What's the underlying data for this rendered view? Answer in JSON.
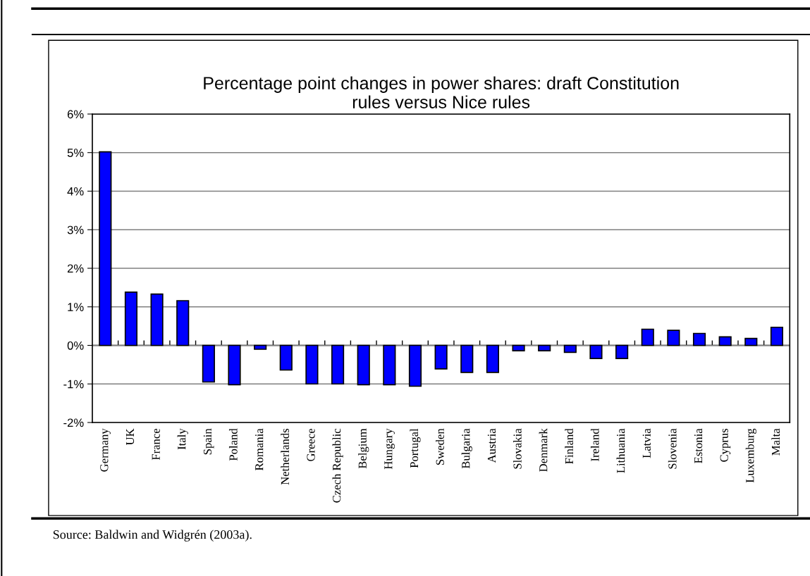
{
  "chart_data": {
    "type": "bar",
    "title": "Percentage point changes in power shares: draft Constitution\nrules versus Nice rules",
    "categories": [
      "Germany",
      "UK",
      "France",
      "Italy",
      "Spain",
      "Poland",
      "Romania",
      "Netherlands",
      "Greece",
      "Czech Republic",
      "Belgium",
      "Hungary",
      "Portugal",
      "Sweden",
      "Bulgaria",
      "Austria",
      "Slovakia",
      "Denmark",
      "Finland",
      "Ireland",
      "Lithuania",
      "Latvia",
      "Slovenia",
      "Estonia",
      "Cyprus",
      "Luxemburg",
      "Malta"
    ],
    "values": [
      5.02,
      1.38,
      1.33,
      1.16,
      -0.95,
      -1.02,
      -0.1,
      -0.64,
      -1.0,
      -1.0,
      -1.02,
      -1.02,
      -1.06,
      -0.61,
      -0.7,
      -0.7,
      -0.14,
      -0.14,
      -0.18,
      -0.34,
      -0.34,
      0.42,
      0.39,
      0.31,
      0.22,
      0.18,
      0.47
    ],
    "color": "#0000ff",
    "ylim": [
      -2,
      6
    ],
    "yticks": [
      {
        "value": -2,
        "label": "-2%"
      },
      {
        "value": -1,
        "label": "-1%"
      },
      {
        "value": 0,
        "label": "0%"
      },
      {
        "value": 1,
        "label": "1%"
      },
      {
        "value": 2,
        "label": "2%"
      },
      {
        "value": 3,
        "label": "3%"
      },
      {
        "value": 4,
        "label": "4%"
      },
      {
        "value": 5,
        "label": "5%"
      },
      {
        "value": 6,
        "label": "6%"
      }
    ],
    "grid": "y",
    "annotations": [
      "Source: Baldwin and Widgrén (2003a)."
    ]
  }
}
